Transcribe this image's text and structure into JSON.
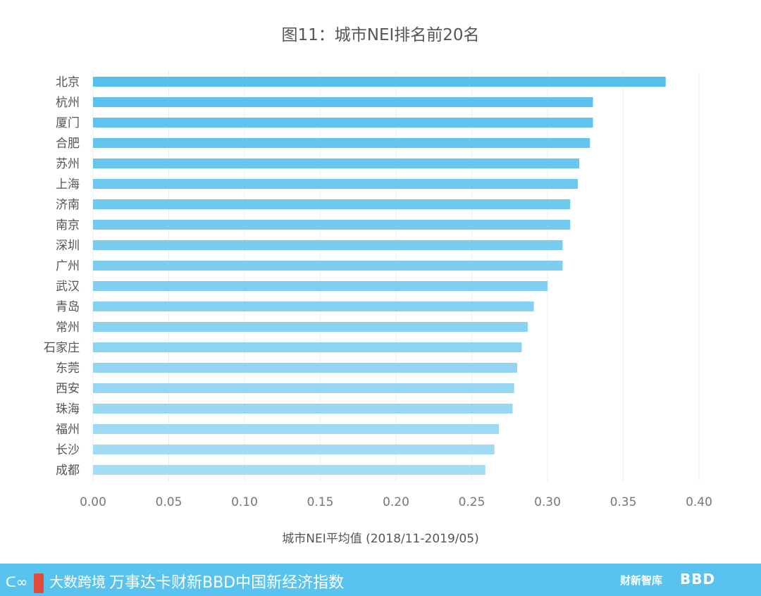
{
  "chart_data": {
    "type": "bar",
    "orientation": "horizontal",
    "title": "图11：城市NEI排名前20名",
    "xlabel": "城市NEI平均值 (2018/11-2019/05)",
    "categories": [
      "北京",
      "杭州",
      "厦门",
      "合肥",
      "苏州",
      "上海",
      "济南",
      "南京",
      "深圳",
      "广州",
      "武汉",
      "青岛",
      "常州",
      "石家庄",
      "东莞",
      "西安",
      "珠海",
      "福州",
      "长沙",
      "成都"
    ],
    "values": [
      0.378,
      0.33,
      0.33,
      0.328,
      0.321,
      0.32,
      0.315,
      0.315,
      0.31,
      0.31,
      0.3,
      0.291,
      0.287,
      0.283,
      0.28,
      0.278,
      0.277,
      0.268,
      0.265,
      0.259
    ],
    "xlim": [
      0,
      0.4
    ],
    "ticks": [
      "0.00",
      "0.05",
      "0.10",
      "0.15",
      "0.20",
      "0.25",
      "0.30",
      "0.35",
      "0.40"
    ],
    "grid": true,
    "color_start": "#56c0ec",
    "color_end": "#a6ddf4"
  },
  "footer": {
    "logo_text": "大数跨境",
    "title": "万事达卡财新BBD中国新经济指数",
    "brand1": "财新智库",
    "brand2": "BBD",
    "background": "#58c3ee"
  }
}
